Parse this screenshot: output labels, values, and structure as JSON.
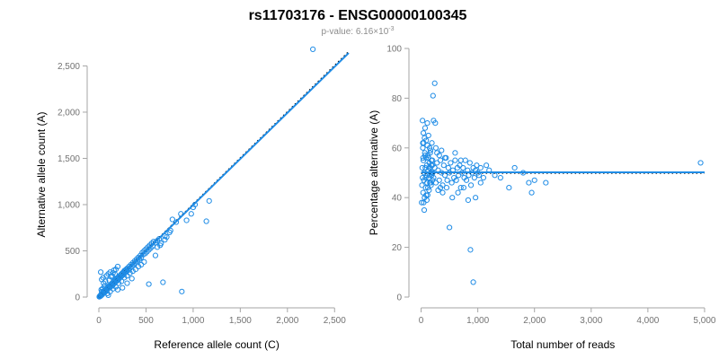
{
  "header": {
    "title": "rs11703176 - ENSG00000100345",
    "subtitle_prefix": "p-value: 6.16×10",
    "subtitle_exponent": "-3"
  },
  "colors": {
    "point": "#1f8ce6",
    "fit_line": "#1f8ce6",
    "reference_line": "#000000",
    "axis": "#a6a6a6",
    "tick_text": "#737373"
  },
  "chart_data": [
    {
      "type": "scatter",
      "name": "allele-counts",
      "title": "",
      "xlabel": "Reference allele count (C)",
      "ylabel": "Alternative allele count (A)",
      "xlim": [
        0,
        2650
      ],
      "ylim": [
        0,
        2650
      ],
      "xticks": [
        0,
        500,
        1000,
        1500,
        2000,
        2500
      ],
      "xtick_labels": [
        "0",
        "500",
        "1,000",
        "1,500",
        "2,000",
        "2,500"
      ],
      "yticks": [
        0,
        500,
        1000,
        1500,
        2000,
        2500
      ],
      "ytick_labels": [
        "0",
        "500",
        "1,000",
        "1,500",
        "2,000",
        "2,500"
      ],
      "grid": false,
      "legend": "none",
      "fit_line": {
        "x": [
          0,
          2650
        ],
        "y": [
          0,
          2640
        ]
      },
      "reference_line": {
        "x": [
          0,
          2650
        ],
        "y": [
          0,
          2650
        ]
      },
      "points": [
        [
          5,
          3
        ],
        [
          8,
          6
        ],
        [
          10,
          12
        ],
        [
          12,
          8
        ],
        [
          15,
          15
        ],
        [
          18,
          10
        ],
        [
          20,
          22
        ],
        [
          22,
          18
        ],
        [
          25,
          28
        ],
        [
          28,
          20
        ],
        [
          30,
          35
        ],
        [
          32,
          25
        ],
        [
          35,
          40
        ],
        [
          38,
          30
        ],
        [
          40,
          45
        ],
        [
          42,
          38
        ],
        [
          45,
          52
        ],
        [
          48,
          42
        ],
        [
          50,
          60
        ],
        [
          52,
          48
        ],
        [
          55,
          62
        ],
        [
          58,
          50
        ],
        [
          60,
          70
        ],
        [
          62,
          55
        ],
        [
          65,
          75
        ],
        [
          68,
          62
        ],
        [
          70,
          80
        ],
        [
          72,
          68
        ],
        [
          75,
          85
        ],
        [
          78,
          72
        ],
        [
          80,
          90
        ],
        [
          82,
          78
        ],
        [
          85,
          95
        ],
        [
          88,
          82
        ],
        [
          90,
          100
        ],
        [
          92,
          88
        ],
        [
          95,
          110
        ],
        [
          98,
          92
        ],
        [
          100,
          115
        ],
        [
          105,
          98
        ],
        [
          110,
          120
        ],
        [
          115,
          105
        ],
        [
          120,
          130
        ],
        [
          125,
          112
        ],
        [
          130,
          140
        ],
        [
          135,
          120
        ],
        [
          140,
          150
        ],
        [
          145,
          130
        ],
        [
          150,
          160
        ],
        [
          155,
          140
        ],
        [
          160,
          170
        ],
        [
          165,
          150
        ],
        [
          170,
          180
        ],
        [
          175,
          160
        ],
        [
          180,
          190
        ],
        [
          185,
          170
        ],
        [
          190,
          200
        ],
        [
          195,
          180
        ],
        [
          200,
          210
        ],
        [
          205,
          190
        ],
        [
          210,
          220
        ],
        [
          215,
          200
        ],
        [
          220,
          230
        ],
        [
          225,
          210
        ],
        [
          230,
          240
        ],
        [
          235,
          220
        ],
        [
          240,
          250
        ],
        [
          245,
          230
        ],
        [
          250,
          260
        ],
        [
          255,
          240
        ],
        [
          260,
          270
        ],
        [
          265,
          250
        ],
        [
          270,
          285
        ],
        [
          275,
          260
        ],
        [
          280,
          290
        ],
        [
          285,
          270
        ],
        [
          290,
          300
        ],
        [
          295,
          280
        ],
        [
          300,
          310
        ],
        [
          310,
          290
        ],
        [
          320,
          330
        ],
        [
          330,
          310
        ],
        [
          340,
          350
        ],
        [
          350,
          330
        ],
        [
          360,
          370
        ],
        [
          370,
          350
        ],
        [
          380,
          390
        ],
        [
          390,
          370
        ],
        [
          400,
          410
        ],
        [
          410,
          390
        ],
        [
          420,
          430
        ],
        [
          430,
          410
        ],
        [
          440,
          450
        ],
        [
          450,
          430
        ],
        [
          460,
          480
        ],
        [
          470,
          460
        ],
        [
          480,
          500
        ],
        [
          490,
          470
        ],
        [
          500,
          520
        ],
        [
          510,
          490
        ],
        [
          520,
          540
        ],
        [
          530,
          510
        ],
        [
          540,
          560
        ],
        [
          550,
          530
        ],
        [
          560,
          580
        ],
        [
          570,
          550
        ],
        [
          580,
          600
        ],
        [
          600,
          590
        ],
        [
          620,
          610
        ],
        [
          640,
          630
        ],
        [
          30,
          60
        ],
        [
          40,
          90
        ],
        [
          25,
          80
        ],
        [
          60,
          120
        ],
        [
          50,
          150
        ],
        [
          70,
          170
        ],
        [
          20,
          270
        ],
        [
          30,
          190
        ],
        [
          45,
          210
        ],
        [
          80,
          230
        ],
        [
          100,
          250
        ],
        [
          110,
          180
        ],
        [
          130,
          220
        ],
        [
          150,
          260
        ],
        [
          120,
          270
        ],
        [
          160,
          290
        ],
        [
          140,
          230
        ],
        [
          180,
          300
        ],
        [
          200,
          330
        ],
        [
          170,
          250
        ],
        [
          90,
          40
        ],
        [
          120,
          60
        ],
        [
          150,
          90
        ],
        [
          180,
          110
        ],
        [
          210,
          150
        ],
        [
          240,
          170
        ],
        [
          270,
          210
        ],
        [
          300,
          230
        ],
        [
          330,
          260
        ],
        [
          360,
          280
        ],
        [
          390,
          300
        ],
        [
          420,
          330
        ],
        [
          450,
          350
        ],
        [
          480,
          380
        ],
        [
          530,
          140
        ],
        [
          100,
          20
        ],
        [
          200,
          80
        ],
        [
          300,
          150
        ],
        [
          250,
          100
        ],
        [
          350,
          200
        ],
        [
          600,
          450
        ],
        [
          650,
          560
        ],
        [
          700,
          620
        ],
        [
          720,
          650
        ],
        [
          750,
          700
        ],
        [
          780,
          840
        ],
        [
          820,
          810
        ],
        [
          870,
          900
        ],
        [
          930,
          830
        ],
        [
          980,
          900
        ],
        [
          1000,
          970
        ],
        [
          1020,
          1000
        ],
        [
          1140,
          820
        ],
        [
          1170,
          1040
        ],
        [
          700,
          660
        ],
        [
          680,
          160
        ],
        [
          880,
          60
        ],
        [
          760,
          720
        ],
        [
          660,
          580
        ],
        [
          620,
          540
        ],
        [
          2270,
          2680
        ]
      ]
    },
    {
      "type": "scatter",
      "name": "percentage-alternative",
      "title": "",
      "xlabel": "Total number of reads",
      "ylabel": "Percentage alternative (A)",
      "xlim": [
        -50,
        5050
      ],
      "ylim": [
        0,
        100
      ],
      "xticks": [
        0,
        1000,
        2000,
        3000,
        4000,
        5000
      ],
      "xtick_labels": [
        "0",
        "1,000",
        "2,000",
        "3,000",
        "4,000",
        "5,000"
      ],
      "yticks": [
        0,
        20,
        40,
        60,
        80,
        100
      ],
      "ytick_labels": [
        "0",
        "20",
        "40",
        "60",
        "80",
        "100"
      ],
      "grid": false,
      "legend": "none",
      "fit_line": {
        "x": [
          0,
          5000
        ],
        "y": [
          50.2,
          50.2
        ]
      },
      "reference_line": {
        "x": [
          0,
          5000
        ],
        "y": [
          50,
          50
        ]
      },
      "points": [
        [
          10,
          38
        ],
        [
          15,
          45
        ],
        [
          20,
          52
        ],
        [
          25,
          48
        ],
        [
          30,
          60
        ],
        [
          35,
          42
        ],
        [
          40,
          55
        ],
        [
          45,
          62
        ],
        [
          50,
          47
        ],
        [
          55,
          50
        ],
        [
          60,
          40
        ],
        [
          65,
          58
        ],
        [
          70,
          68
        ],
        [
          75,
          52
        ],
        [
          80,
          44
        ],
        [
          85,
          56
        ],
        [
          90,
          63
        ],
        [
          95,
          49
        ],
        [
          100,
          53
        ],
        [
          105,
          46
        ],
        [
          110,
          70
        ],
        [
          115,
          41
        ],
        [
          120,
          57
        ],
        [
          125,
          51
        ],
        [
          130,
          65
        ],
        [
          135,
          48
        ],
        [
          140,
          43
        ],
        [
          145,
          54
        ],
        [
          150,
          60
        ],
        [
          155,
          46
        ],
        [
          160,
          52
        ],
        [
          165,
          59
        ],
        [
          170,
          50
        ],
        [
          175,
          45
        ],
        [
          180,
          55
        ],
        [
          185,
          49
        ],
        [
          190,
          62
        ],
        [
          195,
          53
        ],
        [
          200,
          47
        ],
        [
          205,
          50
        ],
        [
          210,
          81
        ],
        [
          220,
          71
        ],
        [
          240,
          86
        ],
        [
          250,
          70
        ],
        [
          30,
          62
        ],
        [
          40,
          66
        ],
        [
          25,
          71
        ],
        [
          35,
          56
        ],
        [
          45,
          38
        ],
        [
          55,
          35
        ],
        [
          60,
          64
        ],
        [
          70,
          57
        ],
        [
          80,
          48
        ],
        [
          90,
          41
        ],
        [
          100,
          39
        ],
        [
          110,
          61
        ],
        [
          120,
          44
        ],
        [
          130,
          56
        ],
        [
          140,
          52
        ],
        [
          150,
          49
        ],
        [
          160,
          58
        ],
        [
          170,
          46
        ],
        [
          180,
          53
        ],
        [
          190,
          50
        ],
        [
          200,
          55
        ],
        [
          220,
          48
        ],
        [
          240,
          52
        ],
        [
          260,
          46
        ],
        [
          280,
          54
        ],
        [
          300,
          51
        ],
        [
          320,
          47
        ],
        [
          340,
          55
        ],
        [
          360,
          50
        ],
        [
          380,
          45
        ],
        [
          400,
          53
        ],
        [
          420,
          49
        ],
        [
          440,
          56
        ],
        [
          460,
          47
        ],
        [
          480,
          52
        ],
        [
          500,
          50
        ],
        [
          520,
          54
        ],
        [
          540,
          46
        ],
        [
          560,
          51
        ],
        [
          580,
          48
        ],
        [
          600,
          55
        ],
        [
          620,
          47
        ],
        [
          640,
          52
        ],
        [
          660,
          49
        ],
        [
          680,
          53
        ],
        [
          700,
          44
        ],
        [
          720,
          50
        ],
        [
          740,
          52
        ],
        [
          760,
          48
        ],
        [
          780,
          55
        ],
        [
          800,
          47
        ],
        [
          820,
          51
        ],
        [
          840,
          49
        ],
        [
          860,
          54
        ],
        [
          880,
          45
        ],
        [
          900,
          50
        ],
        [
          920,
          52
        ],
        [
          940,
          48
        ],
        [
          960,
          51
        ],
        [
          980,
          53
        ],
        [
          1000,
          50
        ],
        [
          1020,
          49
        ],
        [
          1050,
          52
        ],
        [
          1100,
          48
        ],
        [
          1150,
          53
        ],
        [
          1200,
          51
        ],
        [
          260,
          60
        ],
        [
          280,
          58
        ],
        [
          300,
          43
        ],
        [
          320,
          57
        ],
        [
          340,
          44
        ],
        [
          360,
          59
        ],
        [
          380,
          42
        ],
        [
          420,
          56
        ],
        [
          450,
          44
        ],
        [
          500,
          28
        ],
        [
          550,
          40
        ],
        [
          600,
          58
        ],
        [
          650,
          42
        ],
        [
          700,
          55
        ],
        [
          750,
          44
        ],
        [
          830,
          39
        ],
        [
          870,
          19
        ],
        [
          920,
          6
        ],
        [
          960,
          40
        ],
        [
          1050,
          46
        ],
        [
          1300,
          49
        ],
        [
          1400,
          48
        ],
        [
          1550,
          44
        ],
        [
          1650,
          52
        ],
        [
          1800,
          50
        ],
        [
          1900,
          46
        ],
        [
          1950,
          42
        ],
        [
          2000,
          47
        ],
        [
          2200,
          46
        ],
        [
          4930,
          54
        ]
      ]
    }
  ]
}
